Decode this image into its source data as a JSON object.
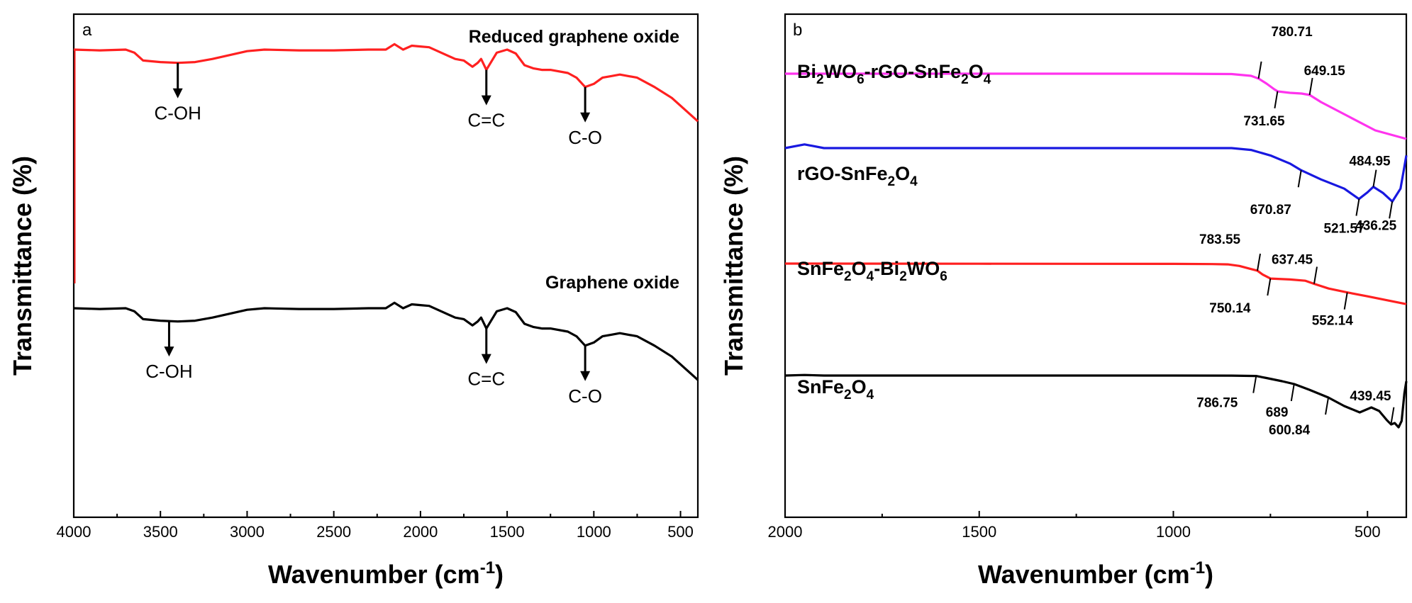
{
  "chart_data": [
    {
      "panel": "a",
      "type": "line",
      "xlabel": "Wavenumber (cm⁻¹)",
      "ylabel": "Transmittance (%)",
      "xlim": [
        4000,
        400
      ],
      "x_reversed": true,
      "xticks": [
        "4000",
        "3500",
        "3000",
        "2500",
        "2000",
        "1500",
        "1000",
        "500"
      ],
      "yticks_shown": false,
      "series": [
        {
          "name": "Reduced graphene oxide",
          "color": "#ff2020",
          "x": [
            4000,
            3850,
            3700,
            3650,
            3600,
            3500,
            3400,
            3300,
            3200,
            3000,
            2900,
            2700,
            2500,
            2300,
            2200,
            2150,
            2100,
            2050,
            2000,
            1950,
            1900,
            1800,
            1750,
            1700,
            1670,
            1650,
            1620,
            1560,
            1500,
            1450,
            1400,
            1350,
            1300,
            1250,
            1150,
            1100,
            1050,
            1000,
            950,
            900,
            850,
            750,
            650,
            550,
            450,
            400
          ],
          "y": [
            0.0,
            0.01,
            0.0,
            0.04,
            0.14,
            0.16,
            0.17,
            0.16,
            0.12,
            0.02,
            0.0,
            0.01,
            0.01,
            0.0,
            0.0,
            -0.07,
            0.0,
            -0.05,
            -0.04,
            -0.03,
            0.02,
            0.12,
            0.14,
            0.22,
            0.17,
            0.12,
            0.26,
            0.04,
            0.0,
            0.05,
            0.2,
            0.24,
            0.26,
            0.26,
            0.3,
            0.36,
            0.48,
            0.44,
            0.36,
            0.34,
            0.32,
            0.36,
            0.48,
            0.62,
            0.82,
            0.92
          ]
        },
        {
          "name": "Graphene oxide",
          "color": "#000000",
          "x": [
            4000,
            3850,
            3700,
            3650,
            3600,
            3500,
            3400,
            3300,
            3200,
            3000,
            2900,
            2700,
            2500,
            2300,
            2200,
            2150,
            2100,
            2050,
            2000,
            1950,
            1900,
            1800,
            1750,
            1700,
            1670,
            1650,
            1620,
            1560,
            1500,
            1450,
            1400,
            1350,
            1300,
            1250,
            1150,
            1100,
            1050,
            1000,
            950,
            900,
            850,
            750,
            650,
            550,
            450,
            400
          ],
          "y": [
            0.0,
            0.01,
            0.0,
            0.04,
            0.14,
            0.16,
            0.17,
            0.16,
            0.12,
            0.02,
            0.0,
            0.01,
            0.01,
            0.0,
            0.0,
            -0.07,
            0.0,
            -0.05,
            -0.04,
            -0.03,
            0.02,
            0.12,
            0.14,
            0.22,
            0.17,
            0.12,
            0.26,
            0.04,
            0.0,
            0.05,
            0.2,
            0.24,
            0.26,
            0.26,
            0.3,
            0.36,
            0.48,
            0.44,
            0.36,
            0.34,
            0.32,
            0.36,
            0.48,
            0.62,
            0.82,
            0.92
          ]
        }
      ],
      "annotations": [
        {
          "series": "Reduced graphene oxide",
          "x": 3400,
          "text": "C-OH"
        },
        {
          "series": "Reduced graphene oxide",
          "x": 1620,
          "text": "C=C"
        },
        {
          "series": "Reduced graphene oxide",
          "x": 1050,
          "text": "C-O"
        },
        {
          "series": "Graphene oxide",
          "x": 3450,
          "text": "C-OH"
        },
        {
          "series": "Graphene oxide",
          "x": 1620,
          "text": "C=C"
        },
        {
          "series": "Graphene oxide",
          "x": 1050,
          "text": "C-O"
        }
      ]
    },
    {
      "panel": "b",
      "type": "line",
      "xlabel": "Wavenumber (cm⁻¹)",
      "ylabel": "Transmittance (%)",
      "xlim": [
        2000,
        400
      ],
      "x_reversed": true,
      "xticks": [
        "2000",
        "1500",
        "1000",
        "500"
      ],
      "yticks_shown": false,
      "series": [
        {
          "name": "Bi2WO6-rGO-SnFe2O4",
          "color": "#ff33ee",
          "x": [
            2000,
            1500,
            1000,
            850,
            800,
            780,
            760,
            740,
            731,
            700,
            670,
            649,
            620,
            550,
            480,
            400
          ],
          "y": [
            0.0,
            0.0,
            0.0,
            0.005,
            0.03,
            0.07,
            0.14,
            0.22,
            0.25,
            0.27,
            0.28,
            0.3,
            0.4,
            0.6,
            0.8,
            0.92
          ]
        },
        {
          "name": "rGO-SnFe2O4",
          "color": "#1818e0",
          "x": [
            2000,
            1950,
            1900,
            1500,
            1000,
            850,
            800,
            750,
            700,
            671,
            620,
            560,
            522,
            500,
            485,
            460,
            436,
            415,
            405,
            400
          ],
          "y": [
            0.0,
            -0.1,
            0.0,
            0.0,
            0.0,
            0.0,
            0.05,
            0.2,
            0.42,
            0.6,
            0.85,
            1.1,
            1.38,
            1.2,
            1.05,
            1.22,
            1.45,
            1.1,
            0.5,
            0.2
          ]
        },
        {
          "name": "SnFe2O4-Bi2WO6",
          "color": "#ff2020",
          "x": [
            2000,
            1500,
            1000,
            900,
            860,
            830,
            800,
            784,
            770,
            750,
            700,
            660,
            637,
            600,
            552,
            500,
            450,
            400
          ],
          "y": [
            0.0,
            0.01,
            0.02,
            0.03,
            0.05,
            0.15,
            0.35,
            0.45,
            0.7,
            0.96,
            1.02,
            1.1,
            1.3,
            1.6,
            1.85,
            2.1,
            2.35,
            2.6
          ]
        },
        {
          "name": "SnFe2O4",
          "color": "#000000",
          "x": [
            2000,
            1950,
            1900,
            1500,
            1000,
            850,
            787,
            760,
            720,
            689,
            650,
            601,
            560,
            520,
            490,
            470,
            450,
            439,
            430,
            420,
            412,
            405,
            400
          ],
          "y": [
            0.0,
            -0.08,
            0.0,
            0.0,
            0.0,
            0.01,
            0.06,
            0.35,
            0.8,
            1.2,
            2.0,
            3.1,
            4.3,
            5.2,
            4.5,
            5.0,
            6.3,
            6.9,
            6.7,
            7.3,
            6.4,
            2.5,
            0.8
          ]
        }
      ],
      "peak_labels": [
        {
          "series": "Bi2WO6-rGO-SnFe2O4",
          "x": 780.71,
          "text": "780.71"
        },
        {
          "series": "Bi2WO6-rGO-SnFe2O4",
          "x": 731.65,
          "text": "731.65"
        },
        {
          "series": "Bi2WO6-rGO-SnFe2O4",
          "x": 649.15,
          "text": "649.15"
        },
        {
          "series": "rGO-SnFe2O4",
          "x": 670.87,
          "text": "670.87"
        },
        {
          "series": "rGO-SnFe2O4",
          "x": 521.57,
          "text": "521.57"
        },
        {
          "series": "rGO-SnFe2O4",
          "x": 484.95,
          "text": "484.95"
        },
        {
          "series": "rGO-SnFe2O4",
          "x": 436.25,
          "text": "436.25"
        },
        {
          "series": "SnFe2O4-Bi2WO6",
          "x": 783.55,
          "text": "783.55"
        },
        {
          "series": "SnFe2O4-Bi2WO6",
          "x": 750.14,
          "text": "750.14"
        },
        {
          "series": "SnFe2O4-Bi2WO6",
          "x": 637.45,
          "text": "637.45"
        },
        {
          "series": "SnFe2O4-Bi2WO6",
          "x": 552.14,
          "text": "552.14"
        },
        {
          "series": "SnFe2O4",
          "x": 786.75,
          "text": "786.75"
        },
        {
          "series": "SnFe2O4",
          "x": 689,
          "text": "689"
        },
        {
          "series": "SnFe2O4",
          "x": 600.84,
          "text": "600.84"
        },
        {
          "series": "SnFe2O4",
          "x": 439.45,
          "text": "439.45"
        }
      ]
    }
  ],
  "figure": {
    "panel_a_letter": "a",
    "panel_b_letter": "b",
    "xlabel_main": "Wavenumber (cm",
    "xlabel_sup": "-1",
    "xlabel_close": ")",
    "ylabel": "Transmittance (%)",
    "a_labels": {
      "rgo": "Reduced graphene oxide",
      "go": "Graphene oxide",
      "coh": "C-OH",
      "cc": "C=C",
      "co": "C-O"
    },
    "b_labels": {
      "s1_p1": "Bi",
      "s1_s1": "2",
      "s1_p2": "WO",
      "s1_s2": "6",
      "s1_p3": "-rGO-SnFe",
      "s1_s3": "2",
      "s1_p4": "O",
      "s1_s4": "4",
      "s2_p1": "rGO-SnFe",
      "s2_s1": "2",
      "s2_p2": "O",
      "s2_s2": "4",
      "s3_p1": "SnFe",
      "s3_s1": "2",
      "s3_p2": "O",
      "s3_s2": "4",
      "s3_p3": "-Bi",
      "s3_s3": "2",
      "s3_p4": "WO",
      "s3_s4": "6",
      "s4_p1": "SnFe",
      "s4_s1": "2",
      "s4_p2": "O",
      "s4_s2": "4"
    }
  }
}
